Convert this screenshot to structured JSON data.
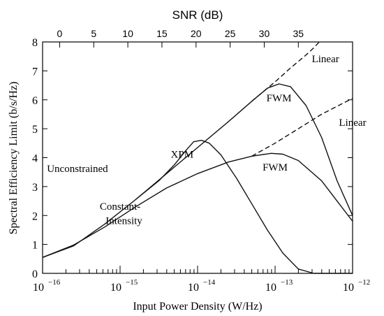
{
  "chart_data": {
    "type": "line",
    "xlabel": "Input Power Density (W/Hz)",
    "ylabel": "Spectral Efficiency Limit (b/s/Hz)",
    "top_axis_label": "SNR (dB)",
    "x_scale": "log10",
    "xlim_exponent": [
      -16,
      -12
    ],
    "ylim": [
      0,
      8
    ],
    "y_ticks": [
      "0",
      "1",
      "2",
      "3",
      "4",
      "5",
      "6",
      "7",
      "8"
    ],
    "x_tick_labels": [
      {
        "exp": -16,
        "text": "10",
        "sup": "−16"
      },
      {
        "exp": -15,
        "text": "10",
        "sup": "−15"
      },
      {
        "exp": -14,
        "text": "10",
        "sup": "−14"
      },
      {
        "exp": -13,
        "text": "10",
        "sup": "−13"
      },
      {
        "exp": -12,
        "text": "10",
        "sup": "−12"
      }
    ],
    "snr_ticks": [
      "0",
      "5",
      "10",
      "15",
      "20",
      "25",
      "30",
      "35"
    ],
    "snr_tick_positions_exp": [
      -15.78,
      -15.34,
      -14.9,
      -14.46,
      -14.02,
      -13.58,
      -13.14,
      -12.7
    ],
    "grid": false,
    "legend": "none",
    "series": [
      {
        "style": "solid",
        "points": [
          [
            -16.0,
            0.55
          ],
          [
            -15.6,
            0.95
          ],
          [
            -15.2,
            1.7
          ],
          [
            -14.8,
            2.55
          ],
          [
            -14.4,
            3.45
          ],
          [
            -14.0,
            4.35
          ],
          [
            -13.6,
            5.25
          ],
          [
            -13.3,
            5.95
          ],
          [
            -13.1,
            6.4
          ],
          [
            -12.95,
            6.55
          ],
          [
            -12.8,
            6.45
          ],
          [
            -12.6,
            5.8
          ],
          [
            -12.4,
            4.7
          ],
          [
            -12.2,
            3.2
          ],
          [
            -12.0,
            2.0
          ]
        ]
      },
      {
        "style": "dashed",
        "points": [
          [
            -13.3,
            5.95
          ],
          [
            -13.0,
            6.62
          ],
          [
            -12.8,
            7.1
          ],
          [
            -12.6,
            7.55
          ],
          [
            -12.5,
            7.8
          ],
          [
            -12.43,
            8.0
          ]
        ]
      },
      {
        "style": "solid",
        "points": [
          [
            -16.0,
            0.55
          ],
          [
            -15.6,
            0.98
          ],
          [
            -15.2,
            1.6
          ],
          [
            -14.8,
            2.3
          ],
          [
            -14.4,
            2.95
          ],
          [
            -14.0,
            3.45
          ],
          [
            -13.6,
            3.85
          ],
          [
            -13.3,
            4.05
          ],
          [
            -13.05,
            4.15
          ],
          [
            -12.9,
            4.12
          ],
          [
            -12.7,
            3.9
          ],
          [
            -12.4,
            3.2
          ],
          [
            -12.2,
            2.5
          ],
          [
            -12.0,
            1.8
          ]
        ]
      },
      {
        "style": "dashed",
        "points": [
          [
            -13.3,
            4.05
          ],
          [
            -13.0,
            4.5
          ],
          [
            -12.7,
            5.0
          ],
          [
            -12.4,
            5.5
          ],
          [
            -12.0,
            6.05
          ]
        ]
      },
      {
        "style": "solid",
        "points": [
          [
            -14.8,
            2.55
          ],
          [
            -14.5,
            3.2
          ],
          [
            -14.3,
            3.75
          ],
          [
            -14.15,
            4.25
          ],
          [
            -14.05,
            4.55
          ],
          [
            -13.95,
            4.6
          ],
          [
            -13.85,
            4.5
          ],
          [
            -13.7,
            4.1
          ],
          [
            -13.5,
            3.3
          ],
          [
            -13.3,
            2.4
          ],
          [
            -13.1,
            1.5
          ],
          [
            -12.9,
            0.7
          ],
          [
            -12.7,
            0.15
          ],
          [
            -12.5,
            0.0
          ],
          [
            -12.0,
            0.0
          ]
        ]
      }
    ],
    "annotations": [
      {
        "text": "Linear",
        "x": -12.35,
        "y": 7.3
      },
      {
        "text": "FWM",
        "x": -12.95,
        "y": 5.95
      },
      {
        "text": "Linear",
        "x": -12.0,
        "y": 5.1
      },
      {
        "text": "XPM",
        "x": -14.2,
        "y": 4.0
      },
      {
        "text": "FWM",
        "x": -13.0,
        "y": 3.55
      },
      {
        "text": "Unconstrained",
        "x": -15.55,
        "y": 3.5
      },
      {
        "text": "Constant-",
        "x": -15.0,
        "y": 2.2
      },
      {
        "text": "Intensity",
        "x": -14.95,
        "y": 1.7
      }
    ]
  }
}
